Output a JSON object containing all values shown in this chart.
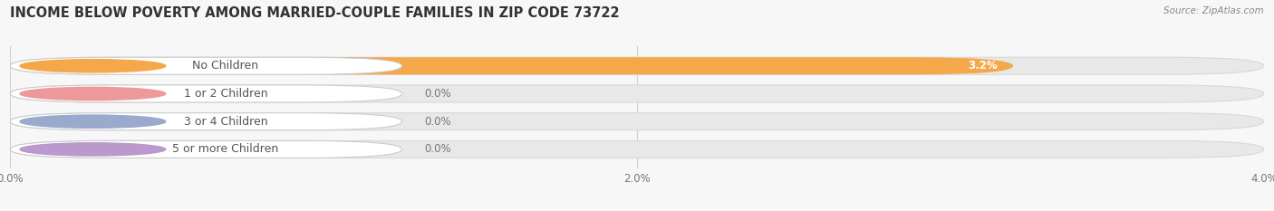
{
  "title": "INCOME BELOW POVERTY AMONG MARRIED-COUPLE FAMILIES IN ZIP CODE 73722",
  "source": "Source: ZipAtlas.com",
  "categories": [
    "No Children",
    "1 or 2 Children",
    "3 or 4 Children",
    "5 or more Children"
  ],
  "values": [
    3.2,
    0.0,
    0.0,
    0.0
  ],
  "value_labels": [
    "3.2%",
    "0.0%",
    "0.0%",
    "0.0%"
  ],
  "bar_colors": [
    "#F5A84A",
    "#EE9999",
    "#99AACC",
    "#BB99CC"
  ],
  "xlim": [
    0,
    4.0
  ],
  "xticks": [
    0.0,
    2.0,
    4.0
  ],
  "xtick_labels": [
    "0.0%",
    "2.0%",
    "4.0%"
  ],
  "bar_height": 0.62,
  "title_fontsize": 10.5,
  "label_fontsize": 9,
  "value_fontsize": 8.5,
  "bg_color": "#f7f7f7",
  "bar_track_color": "#e8e8e8",
  "bar_track_edge": "#d8d8d8",
  "label_pill_color": "#ffffff",
  "label_pill_edge": "#cccccc",
  "grid_color": "#d0d0d0",
  "label_text_color": "#555555",
  "source_color": "#888888",
  "title_color": "#333333",
  "value_label_inside_color": "#ffffff",
  "value_label_outside_color": "#777777"
}
